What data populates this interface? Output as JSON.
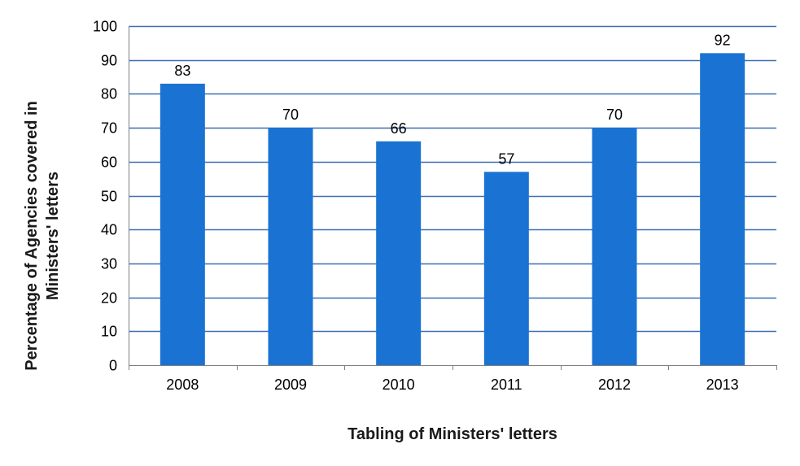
{
  "chart_data": {
    "type": "bar",
    "title": "",
    "xlabel": "Tabling of Ministers' letters",
    "ylabel_lines": [
      "Percentage of Agencies covered in",
      "Ministers' letters"
    ],
    "categories": [
      "2008",
      "2009",
      "2010",
      "2011",
      "2012",
      "2013"
    ],
    "values": [
      83,
      70,
      66,
      57,
      70,
      92
    ],
    "data_labels": [
      "83",
      "70",
      "66",
      "57",
      "70",
      "92"
    ],
    "ylim": [
      0,
      100
    ],
    "yticks": [
      "0",
      "10",
      "20",
      "30",
      "40",
      "50",
      "60",
      "70",
      "80",
      "90",
      "100"
    ],
    "grid": true,
    "legend": "none",
    "colors": {
      "bar": "#1a73d2",
      "grid": "#3b6fb5",
      "axis": "#808080"
    }
  }
}
